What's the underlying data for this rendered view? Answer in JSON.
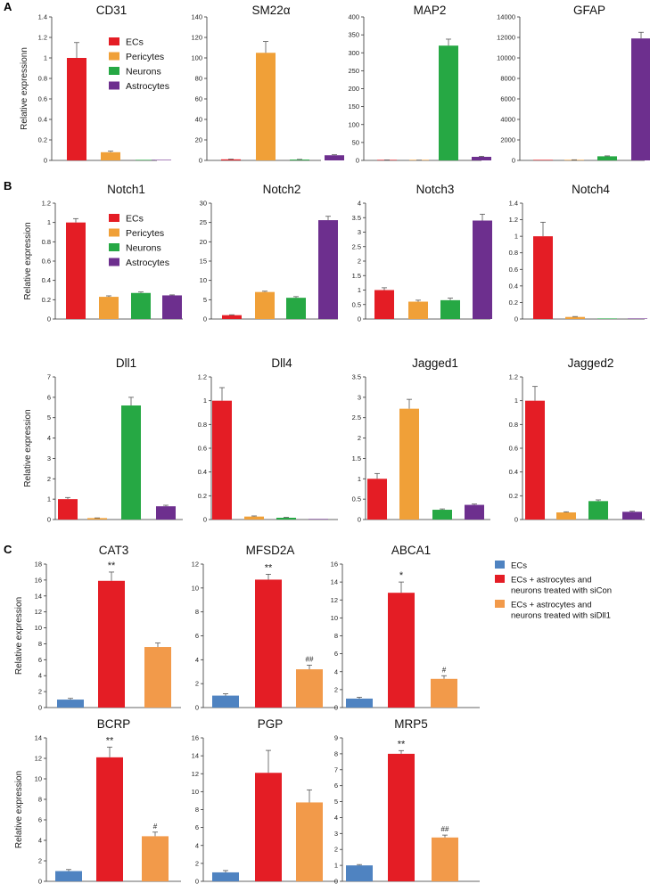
{
  "palette": {
    "ECs": "#e41d25",
    "Pericytes": "#f0a038",
    "Neurons": "#26a844",
    "Astrocytes": "#6d2f8e",
    "EC_blue": "#4f83c1",
    "siCon": "#e41d25",
    "siDll1": "#f29a4a"
  },
  "panels": [
    {
      "label": "A"
    },
    {
      "label": "B"
    },
    {
      "label": "C"
    }
  ],
  "legend_cell": {
    "entries": [
      {
        "name": "ECs",
        "color": "#e41d25"
      },
      {
        "name": "Pericytes",
        "color": "#f0a038"
      },
      {
        "name": "Neurons",
        "color": "#26a844"
      },
      {
        "name": "Astrocytes",
        "color": "#6d2f8e"
      }
    ]
  },
  "legend_treatment": {
    "entries": [
      {
        "text": [
          "ECs"
        ],
        "color": "#4f83c1"
      },
      {
        "text": [
          "ECs + astrocytes and",
          "neurons treated with siCon"
        ],
        "color": "#e41d25"
      },
      {
        "text": [
          "ECs + astrocytes and",
          "neurons treated with siDll1"
        ],
        "color": "#f29a4a"
      }
    ]
  },
  "chart_data": [
    {
      "type": "bar",
      "title": "CD31",
      "ylabel": "Relative expressionn",
      "ylim": [
        0,
        1.4
      ],
      "ticks": [
        "0",
        "0.2",
        "0.4",
        "0.6",
        "0.8",
        "1",
        "1.2",
        "1.4"
      ],
      "categories": [
        "ECs",
        "Pericytes",
        "Neurons",
        "Astrocytes"
      ],
      "values": [
        1.0,
        0.08,
        0.0,
        0.0
      ],
      "errors": [
        0.15,
        0.01,
        0,
        0
      ],
      "annotations": [
        "",
        "",
        "",
        ""
      ]
    },
    {
      "type": "bar",
      "title": "SM22α",
      "ylabel": "",
      "ylim": [
        0,
        140
      ],
      "ticks": [
        "0",
        "20",
        "40",
        "60",
        "80",
        "100",
        "120",
        "140"
      ],
      "categories": [
        "ECs",
        "Pericytes",
        "Neurons",
        "Astrocytes"
      ],
      "values": [
        1.0,
        105,
        0.8,
        5.0
      ],
      "errors": [
        0.2,
        11,
        0.2,
        0.5
      ],
      "annotations": [
        "",
        "",
        "",
        ""
      ]
    },
    {
      "type": "bar",
      "title": "MAP2",
      "ylabel": "",
      "ylim": [
        0,
        400
      ],
      "ticks": [
        "0",
        "50",
        "100",
        "150",
        "200",
        "250",
        "300",
        "350",
        "400"
      ],
      "categories": [
        "ECs",
        "Pericytes",
        "Neurons",
        "Astrocytes"
      ],
      "values": [
        1.0,
        0.5,
        320,
        10
      ],
      "errors": [
        0.2,
        0.1,
        18,
        1.5
      ],
      "annotations": [
        "",
        "",
        "",
        ""
      ]
    },
    {
      "type": "bar",
      "title": "GFAP",
      "ylabel": "",
      "ylim": [
        0,
        14000
      ],
      "ticks": [
        "0",
        "2000",
        "4000",
        "6000",
        "8000",
        "10000",
        "12000",
        "14000"
      ],
      "categories": [
        "ECs",
        "Pericytes",
        "Neurons",
        "Astrocytes"
      ],
      "values": [
        1,
        50,
        400,
        11900
      ],
      "errors": [
        0,
        10,
        40,
        600
      ],
      "annotations": [
        "",
        "",
        "",
        ""
      ]
    },
    {
      "type": "bar",
      "title": "Notch1",
      "ylabel": "Relative expression",
      "ylim": [
        0,
        1.2
      ],
      "ticks": [
        "0",
        "0.2",
        "0.4",
        "0.6",
        "0.8",
        "1",
        "1.2"
      ],
      "categories": [
        "ECs",
        "Pericytes",
        "Neurons",
        "Astrocytes"
      ],
      "values": [
        1.0,
        0.23,
        0.27,
        0.245
      ],
      "errors": [
        0.04,
        0.01,
        0.01,
        0.005
      ],
      "annotations": [
        "",
        "",
        "",
        ""
      ]
    },
    {
      "type": "bar",
      "title": "Notch2",
      "ylabel": "",
      "ylim": [
        0,
        30
      ],
      "ticks": [
        "0",
        "5",
        "10",
        "15",
        "20",
        "25",
        "30"
      ],
      "categories": [
        "ECs",
        "Pericytes",
        "Neurons",
        "Astrocytes"
      ],
      "values": [
        1.0,
        7.0,
        5.5,
        25.6
      ],
      "errors": [
        0.1,
        0.2,
        0.3,
        1.0
      ],
      "annotations": [
        "",
        "",
        "",
        ""
      ]
    },
    {
      "type": "bar",
      "title": "Notch3",
      "ylabel": "",
      "ylim": [
        0,
        4
      ],
      "ticks": [
        "0",
        "0.5",
        "1",
        "1.5",
        "2",
        "2.5",
        "3",
        "3.5",
        "4"
      ],
      "categories": [
        "ECs",
        "Pericytes",
        "Neurons",
        "Astrocytes"
      ],
      "values": [
        1.0,
        0.6,
        0.65,
        3.4
      ],
      "errors": [
        0.08,
        0.05,
        0.07,
        0.22
      ],
      "annotations": [
        "",
        "",
        "",
        ""
      ]
    },
    {
      "type": "bar",
      "title": "Notch4",
      "ylabel": "",
      "ylim": [
        0,
        1.4
      ],
      "ticks": [
        "0",
        "0.2",
        "0.4",
        "0.6",
        "0.8",
        "1",
        "1.2",
        "1.4"
      ],
      "categories": [
        "ECs",
        "Pericytes",
        "Neurons",
        "Astrocytes"
      ],
      "values": [
        1.0,
        0.025,
        0.002,
        0.002
      ],
      "errors": [
        0.17,
        0.005,
        0,
        0
      ],
      "annotations": [
        "",
        "",
        "",
        ""
      ]
    },
    {
      "type": "bar",
      "title": "Dll1",
      "ylabel": "Relative expression",
      "ylim": [
        0,
        7
      ],
      "ticks": [
        "0",
        "1",
        "2",
        "3",
        "4",
        "5",
        "6",
        "7"
      ],
      "categories": [
        "ECs",
        "Pericytes",
        "Neurons",
        "Astrocytes"
      ],
      "values": [
        1.0,
        0.07,
        5.6,
        0.65
      ],
      "errors": [
        0.08,
        0.01,
        0.4,
        0.05
      ],
      "annotations": [
        "",
        "",
        "",
        ""
      ]
    },
    {
      "type": "bar",
      "title": "Dll4",
      "ylabel": "",
      "ylim": [
        0,
        1.2
      ],
      "ticks": [
        "0",
        "0.2",
        "0.4",
        "0.6",
        "0.8",
        "1",
        "1.2"
      ],
      "categories": [
        "ECs",
        "Pericytes",
        "Neurons",
        "Astrocytes"
      ],
      "values": [
        1.0,
        0.025,
        0.015,
        0.002
      ],
      "errors": [
        0.11,
        0.005,
        0.003,
        0
      ],
      "annotations": [
        "",
        "",
        "",
        ""
      ]
    },
    {
      "type": "bar",
      "title": "Jagged1",
      "ylabel": "",
      "ylim": [
        0,
        3.5
      ],
      "ticks": [
        "0",
        "0.5",
        "1",
        "1.5",
        "2",
        "2.5",
        "3",
        "3.5"
      ],
      "categories": [
        "ECs",
        "Pericytes",
        "Neurons",
        "Astrocytes"
      ],
      "values": [
        1.0,
        2.72,
        0.24,
        0.36
      ],
      "errors": [
        0.13,
        0.23,
        0.02,
        0.02
      ],
      "annotations": [
        "",
        "",
        "",
        ""
      ]
    },
    {
      "type": "bar",
      "title": "Jagged2",
      "ylabel": "",
      "ylim": [
        0,
        1.2
      ],
      "ticks": [
        "0",
        "0.2",
        "0.4",
        "0.6",
        "0.8",
        "1",
        "1.2"
      ],
      "categories": [
        "ECs",
        "Pericytes",
        "Neurons",
        "Astrocytes"
      ],
      "values": [
        1.0,
        0.06,
        0.155,
        0.065
      ],
      "errors": [
        0.12,
        0.005,
        0.01,
        0.005
      ],
      "annotations": [
        "",
        "",
        "",
        ""
      ]
    },
    {
      "type": "bar",
      "title": "CAT3",
      "ylabel": "Relative expression",
      "ylim": [
        0,
        18
      ],
      "ticks": [
        "0",
        "2",
        "4",
        "6",
        "8",
        "10",
        "12",
        "14",
        "16",
        "18"
      ],
      "categories": [
        "ECs",
        "ECs + astrocytes and neurons treated with siCon",
        "ECs + astrocytes and neurons treated with siDll1"
      ],
      "values": [
        1.0,
        15.9,
        7.6
      ],
      "errors": [
        0.15,
        1.1,
        0.5
      ],
      "annotations": [
        "",
        "**",
        ""
      ]
    },
    {
      "type": "bar",
      "title": "MFSD2A",
      "ylabel": "",
      "ylim": [
        0,
        12
      ],
      "ticks": [
        "0",
        "2",
        "4",
        "6",
        "8",
        "10",
        "12"
      ],
      "categories": [
        "ECs",
        "ECs + astrocytes and neurons treated with siCon",
        "ECs + astrocytes and neurons treated with siDll1"
      ],
      "values": [
        1.0,
        10.7,
        3.2
      ],
      "errors": [
        0.15,
        0.45,
        0.35
      ],
      "annotations": [
        "",
        "**",
        "##"
      ]
    },
    {
      "type": "bar",
      "title": "ABCA1",
      "ylabel": "",
      "ylim": [
        0,
        16
      ],
      "ticks": [
        "0",
        "2",
        "4",
        "6",
        "8",
        "10",
        "12",
        "14",
        "16"
      ],
      "categories": [
        "ECs",
        "ECs + astrocytes and neurons treated with siCon",
        "ECs + astrocytes and neurons treated with siDll1"
      ],
      "values": [
        1.0,
        12.8,
        3.2
      ],
      "errors": [
        0.15,
        1.2,
        0.35
      ],
      "annotations": [
        "",
        "*",
        "#"
      ]
    },
    {
      "type": "bar",
      "title": "BCRP",
      "ylabel": "Relative expression",
      "ylim": [
        0,
        14
      ],
      "ticks": [
        "0",
        "2",
        "4",
        "6",
        "8",
        "10",
        "12",
        "14"
      ],
      "categories": [
        "ECs",
        "ECs + astrocytes and neurons treated with siCon",
        "ECs + astrocytes and neurons treated with siDll1"
      ],
      "values": [
        1.0,
        12.1,
        4.4
      ],
      "errors": [
        0.15,
        1.0,
        0.4
      ],
      "annotations": [
        "",
        "**",
        "#"
      ]
    },
    {
      "type": "bar",
      "title": "PGP",
      "ylabel": "",
      "ylim": [
        0,
        16
      ],
      "ticks": [
        "0",
        "2",
        "4",
        "6",
        "8",
        "10",
        "12",
        "14",
        "16"
      ],
      "categories": [
        "ECs",
        "ECs + astrocytes and neurons treated with siCon",
        "ECs + astrocytes and neurons treated with siDll1"
      ],
      "values": [
        1.0,
        12.1,
        8.8
      ],
      "errors": [
        0.2,
        2.5,
        1.4
      ],
      "annotations": [
        "",
        "",
        ""
      ]
    },
    {
      "type": "bar",
      "title": "MRP5",
      "ylabel": "",
      "ylim": [
        0,
        9
      ],
      "ticks": [
        "0",
        "1",
        "2",
        "3",
        "4",
        "5",
        "6",
        "7",
        "8",
        "9"
      ],
      "categories": [
        "ECs",
        "ECs + astrocytes and neurons treated with siCon",
        "ECs + astrocytes and neurons treated with siDll1"
      ],
      "values": [
        1.0,
        8.0,
        2.75
      ],
      "errors": [
        0.05,
        0.2,
        0.15
      ],
      "annotations": [
        "",
        "**",
        "##"
      ]
    }
  ]
}
